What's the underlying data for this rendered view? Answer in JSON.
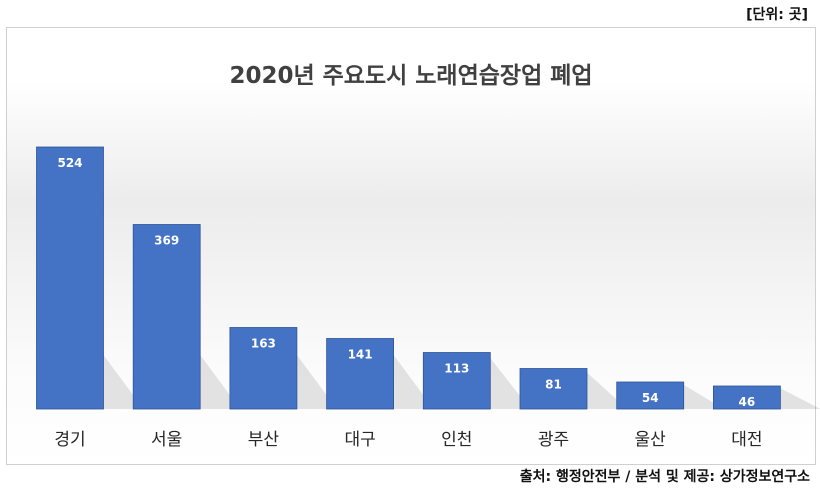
{
  "unit_note": "[단위: 곳]",
  "source_note": "출처: 행정안전부 / 분석 및 제공: 상가정보연구소",
  "colors": {
    "bar": "#4472C4",
    "bar_edge": "#2F5597",
    "label": "#ffffff",
    "axis_label": "#262626"
  },
  "chart_data": {
    "type": "bar",
    "title": "2020년 주요도시 노래연습장업 폐업",
    "categories": [
      "경기",
      "서울",
      "부산",
      "대구",
      "인천",
      "광주",
      "울산",
      "대전"
    ],
    "values": [
      524,
      369,
      163,
      141,
      113,
      81,
      54,
      46
    ],
    "data_labels": [
      "524",
      "369",
      "163",
      "141",
      "113",
      "81",
      "54",
      "46"
    ],
    "xlabel": "",
    "ylabel": "",
    "ylim": [
      0,
      524
    ],
    "grid": false,
    "legend": "none"
  }
}
